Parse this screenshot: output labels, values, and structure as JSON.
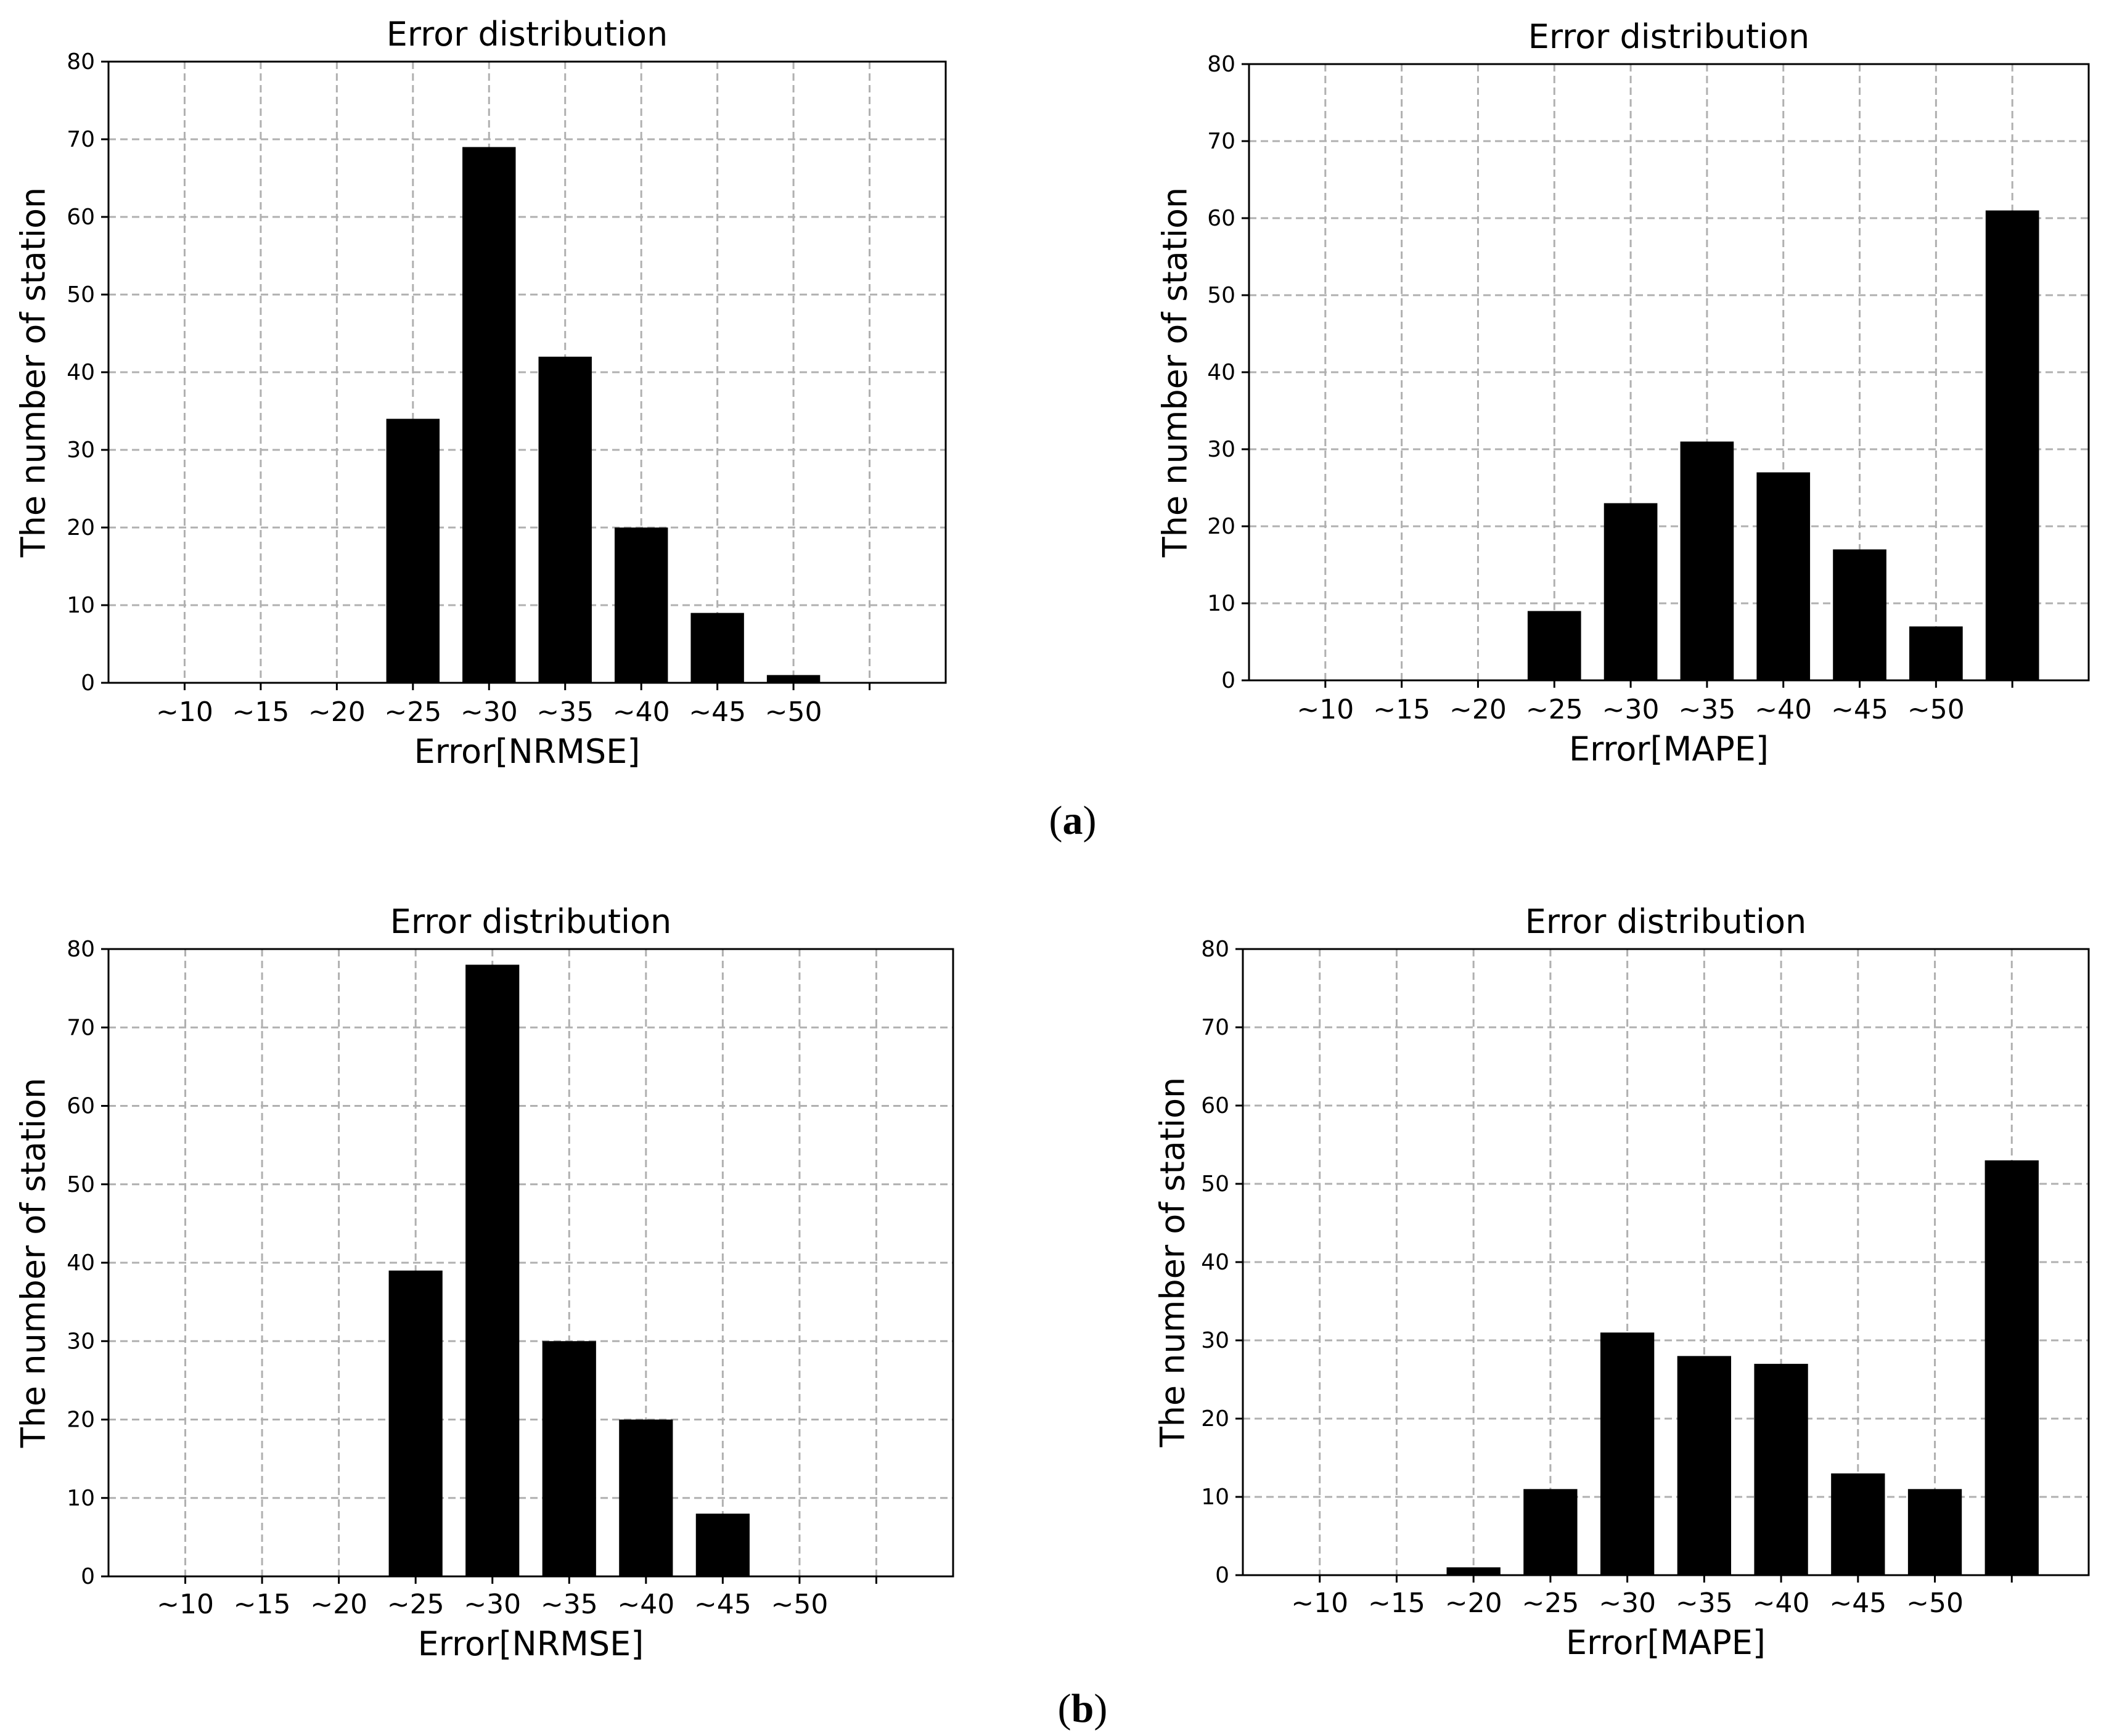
{
  "panels": [
    {
      "label": "a"
    },
    {
      "label": "b"
    }
  ],
  "chart_data": [
    {
      "type": "bar",
      "panel": "a",
      "title": "Error distribution",
      "xlabel": "Error[NRMSE]",
      "ylabel": "The number of station",
      "categories": [
        "~10",
        "~15",
        "~20",
        "~25",
        "~30",
        "~35",
        "~40",
        "~45",
        "~50",
        ""
      ],
      "values": [
        0,
        0,
        0,
        34,
        69,
        42,
        20,
        9,
        1,
        0
      ],
      "ylim": [
        0,
        80
      ],
      "yticks": [
        0,
        10,
        20,
        30,
        40,
        50,
        60,
        70,
        80
      ],
      "grid": true,
      "bar_color": "#000000"
    },
    {
      "type": "bar",
      "panel": "a",
      "title": "Error distribution",
      "xlabel": "Error[MAPE]",
      "ylabel": "The number of station",
      "categories": [
        "~10",
        "~15",
        "~20",
        "~25",
        "~30",
        "~35",
        "~40",
        "~45",
        "~50",
        ""
      ],
      "values": [
        0,
        0,
        0,
        9,
        23,
        31,
        27,
        17,
        7,
        61
      ],
      "ylim": [
        0,
        80
      ],
      "yticks": [
        0,
        10,
        20,
        30,
        40,
        50,
        60,
        70,
        80
      ],
      "grid": true,
      "bar_color": "#000000"
    },
    {
      "type": "bar",
      "panel": "b",
      "title": "Error distribution",
      "xlabel": "Error[NRMSE]",
      "ylabel": "The number of station",
      "categories": [
        "~10",
        "~15",
        "~20",
        "~25",
        "~30",
        "~35",
        "~40",
        "~45",
        "~50",
        ""
      ],
      "values": [
        0,
        0,
        0,
        39,
        78,
        30,
        20,
        8,
        0,
        0
      ],
      "ylim": [
        0,
        80
      ],
      "yticks": [
        0,
        10,
        20,
        30,
        40,
        50,
        60,
        70,
        80
      ],
      "grid": true,
      "bar_color": "#000000"
    },
    {
      "type": "bar",
      "panel": "b",
      "title": "Error distribution",
      "xlabel": "Error[MAPE]",
      "ylabel": "The number of station",
      "categories": [
        "~10",
        "~15",
        "~20",
        "~25",
        "~30",
        "~35",
        "~40",
        "~45",
        "~50",
        ""
      ],
      "values": [
        0,
        0,
        1,
        11,
        31,
        28,
        27,
        13,
        11,
        53
      ],
      "ylim": [
        0,
        80
      ],
      "yticks": [
        0,
        10,
        20,
        30,
        40,
        50,
        60,
        70,
        80
      ],
      "grid": true,
      "bar_color": "#000000"
    }
  ]
}
